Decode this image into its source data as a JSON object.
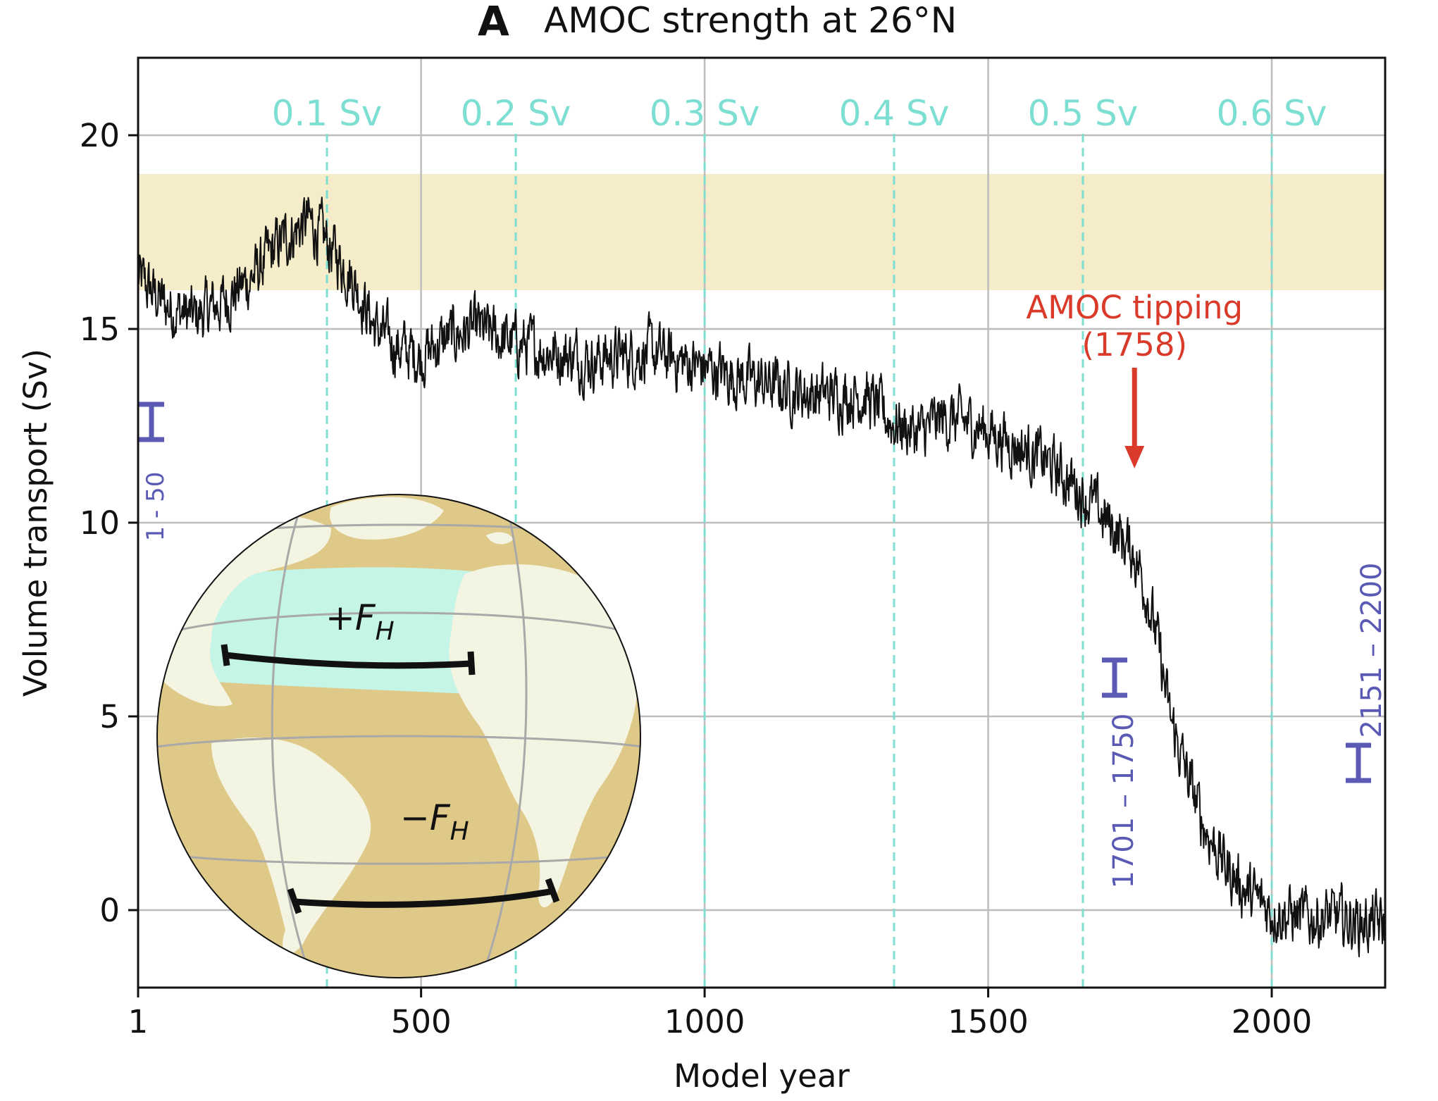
{
  "panel_letter": "A",
  "chart_data": {
    "type": "line",
    "title": "AMOC strength at 26°N",
    "xlabel": "Model year",
    "ylabel": "Volume transport (Sv)",
    "xlim": [
      1,
      2200
    ],
    "ylim": [
      -2,
      22
    ],
    "xticks": [
      1,
      500,
      1000,
      1500,
      2000
    ],
    "xtick_labels": [
      "1",
      "500",
      "1000",
      "1500",
      "2000"
    ],
    "yticks": [
      0,
      5,
      10,
      15,
      20
    ],
    "ytick_labels": [
      "0",
      "5",
      "10",
      "15",
      "20"
    ],
    "grid": true,
    "observation_band": [
      16,
      19
    ],
    "forcing_markers": [
      {
        "x": 334,
        "label": "0.1 Sv"
      },
      {
        "x": 667,
        "label": "0.2 Sv"
      },
      {
        "x": 1000,
        "label": "0.3 Sv"
      },
      {
        "x": 1334,
        "label": "0.4 Sv"
      },
      {
        "x": 1667,
        "label": "0.5 Sv"
      },
      {
        "x": 2000,
        "label": "0.6 Sv"
      }
    ],
    "series": [
      {
        "name": "AMOC strength at 26°N",
        "color": "#111111",
        "noise_sv": 0.55,
        "x": [
          1,
          50,
          100,
          150,
          200,
          250,
          300,
          330,
          380,
          420,
          460,
          500,
          550,
          600,
          650,
          700,
          800,
          900,
          1000,
          1100,
          1200,
          1280,
          1330,
          1380,
          1420,
          1480,
          1550,
          1600,
          1650,
          1700,
          1730,
          1758,
          1780,
          1800,
          1820,
          1850,
          1880,
          1920,
          1960,
          2000,
          2050,
          2100,
          2150,
          2200
        ],
        "y": [
          16.3,
          15.6,
          15.3,
          15.7,
          16.3,
          17.2,
          17.8,
          17.3,
          16.3,
          15.0,
          14.5,
          14.3,
          14.8,
          15.0,
          14.7,
          14.5,
          14.2,
          14.4,
          14.0,
          13.6,
          13.3,
          13.3,
          12.6,
          12.3,
          12.7,
          12.5,
          12.0,
          11.6,
          11.0,
          10.2,
          9.7,
          9.2,
          8.2,
          6.8,
          5.0,
          3.5,
          2.2,
          1.1,
          0.4,
          0.0,
          -0.2,
          -0.2,
          -0.3,
          -0.4
        ]
      }
    ],
    "averaging_windows": [
      {
        "label": "1 - 50",
        "y": 12.6
      },
      {
        "label": "1701 – 1750",
        "y": 6.0
      },
      {
        "label": "2151 – 2200",
        "y": 3.8
      }
    ],
    "annotations": [
      {
        "text_line1": "AMOC tipping",
        "text_line2": "(1758)",
        "x": 1758,
        "arrow_tip_y": 11.4
      }
    ],
    "inset": {
      "label_top": "+F",
      "label_top_sub": "H",
      "label_bottom": "−F",
      "label_bottom_sub": "H"
    }
  },
  "colors": {
    "band": "#f5ecc9",
    "forcing": "#7dded2",
    "window": "#5a5ab4",
    "tipping": "#d93a2a",
    "grid": "#bdbdbd",
    "ocean": "#dfc988",
    "land": "#f4f4e2",
    "basin": "#c4f5e6"
  }
}
